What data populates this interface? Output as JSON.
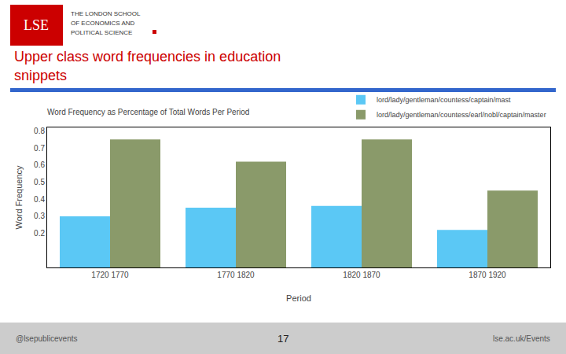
{
  "chart_data": {
    "type": "bar",
    "title": "Word Frequency as Percentage of Total Words Per Period",
    "xlabel": "Period",
    "ylabel": "Word Frequency",
    "categories": [
      "1720 1770",
      "1770 1820",
      "1820 1870",
      "1870 1920"
    ],
    "series": [
      {
        "name": "lord/lady/gentleman/countess/captain/mast",
        "color": "#5BC8F5",
        "values": [
          0.3,
          0.35,
          0.36,
          0.22
        ]
      },
      {
        "name": "lord/lady/gentleman/countess/earl/nobl/captain/master",
        "color": "#8A9A6A",
        "values": [
          0.75,
          0.62,
          0.75,
          0.45
        ]
      }
    ],
    "ylim": [
      0.0,
      0.82
    ],
    "yticks": [
      0.2,
      0.3,
      0.4,
      0.5,
      0.6,
      0.7,
      0.8
    ],
    "grid": false,
    "legend": "upper right",
    "annotations": [
      "LSE",
      "THE LONDON SCHOOL",
      "OF ECONOMICS AND",
      "POLITICAL SCIENCE",
      "Upper class word frequencies in education",
      "snippets",
      "@lsepublicevents",
      "17",
      "lse.ac.uk/Events"
    ]
  }
}
